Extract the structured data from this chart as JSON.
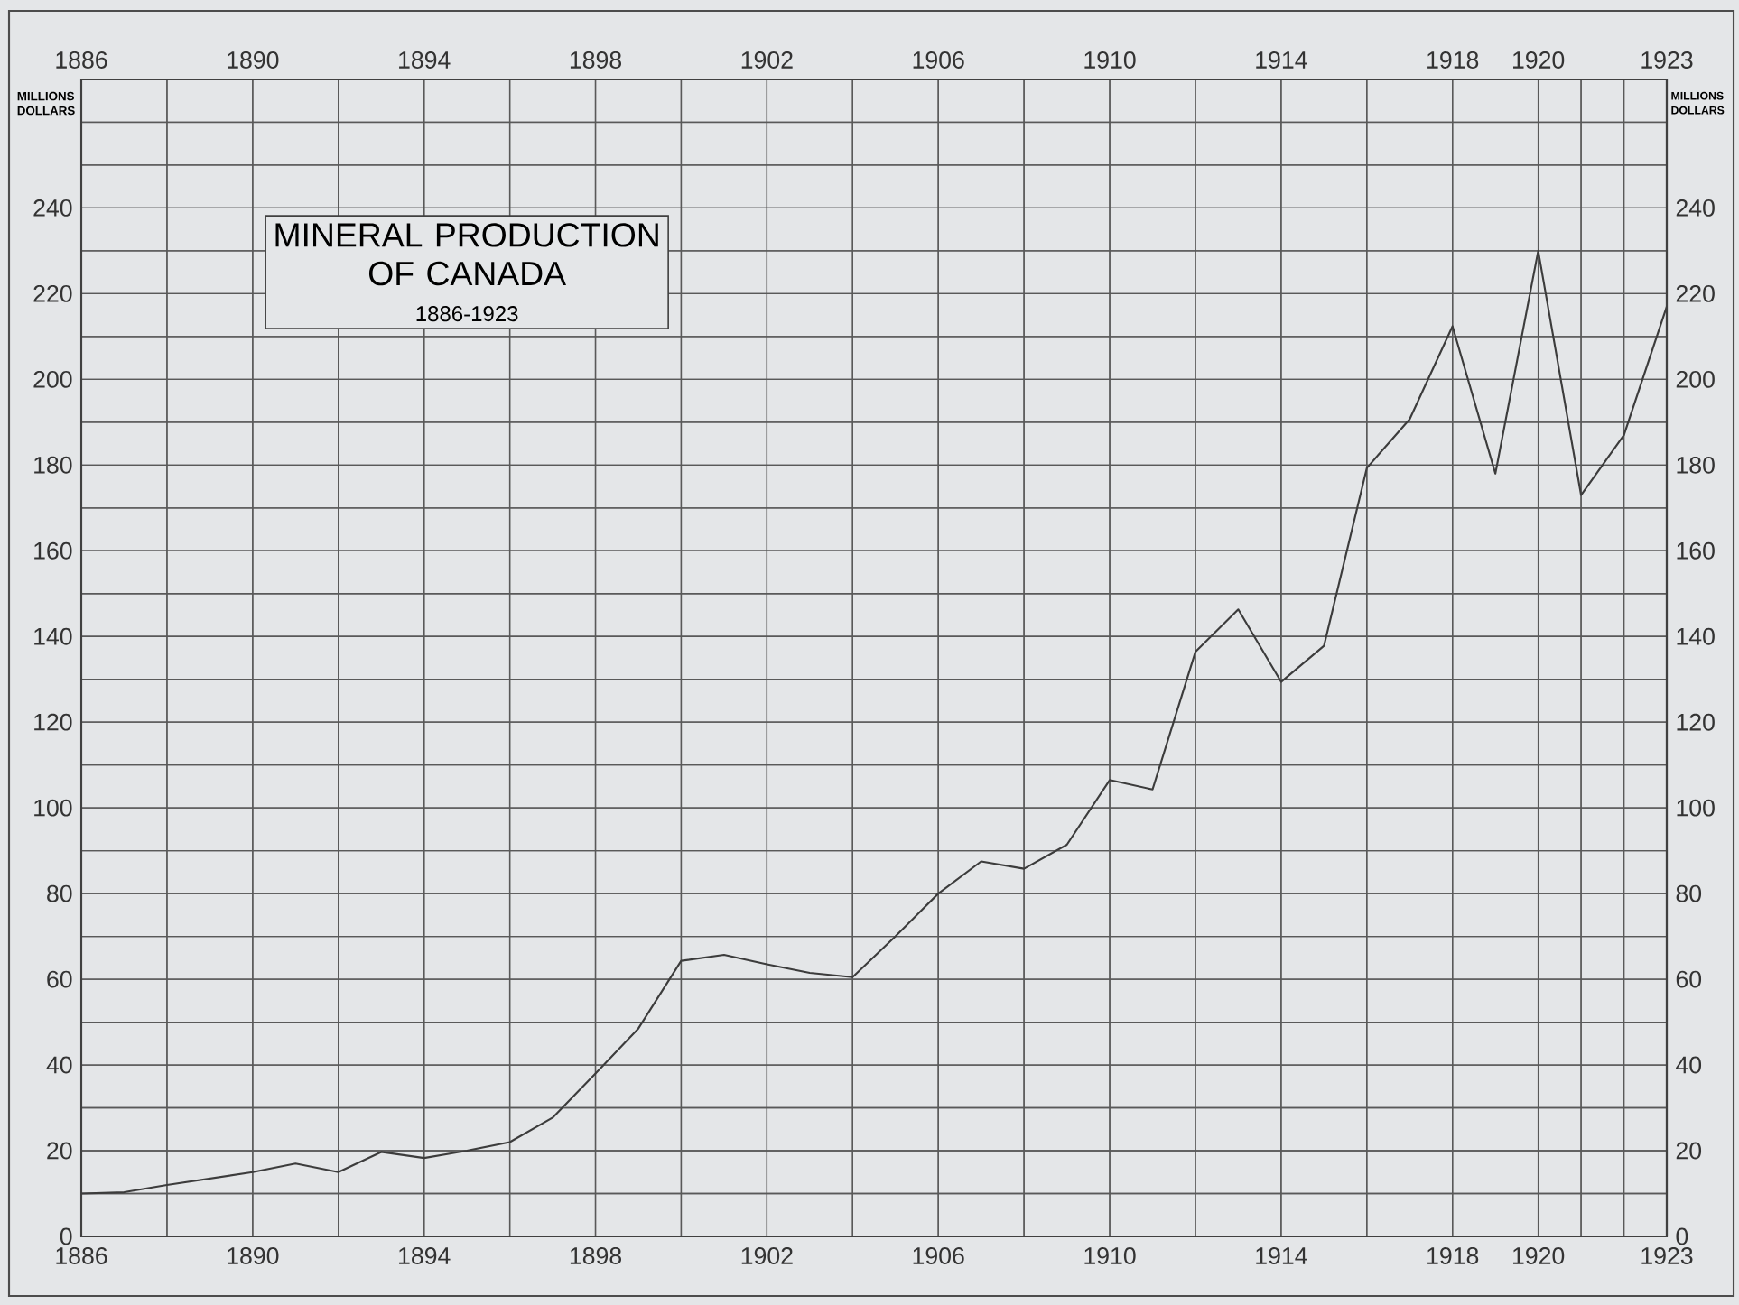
{
  "chart_data": {
    "type": "line",
    "title": "MINERAL PRODUCTION OF CANADA",
    "subtitle": "1886-1923",
    "ylabel": "MILLIONS DOLLARS",
    "y2label": "MILLIONS DOLLARS",
    "x": [
      1886,
      1887,
      1888,
      1889,
      1890,
      1891,
      1892,
      1893,
      1894,
      1895,
      1896,
      1897,
      1898,
      1899,
      1900,
      1901,
      1902,
      1903,
      1904,
      1905,
      1906,
      1907,
      1908,
      1909,
      1910,
      1911,
      1912,
      1913,
      1914,
      1915,
      1916,
      1917,
      1918,
      1919,
      1920,
      1921,
      1922,
      1923
    ],
    "values": [
      10,
      10.3,
      12,
      13.5,
      15,
      17,
      15,
      19.7,
      18.3,
      20,
      22,
      27.7,
      38,
      48.5,
      64.3,
      65.7,
      63.5,
      61.5,
      60.5,
      70,
      80,
      87.5,
      85.8,
      91.4,
      106.5,
      104.3,
      136.4,
      146.3,
      129.4,
      137.8,
      179.3,
      190.7,
      212.4,
      178,
      230,
      173,
      187,
      217
    ],
    "color": "#3c3c3c",
    "marker": "none",
    "grid": true,
    "xlim": [
      1886,
      1923
    ],
    "x2lim": [
      1886,
      1923
    ],
    "ylim": [
      0,
      270
    ],
    "y2lim": [
      0,
      270
    ],
    "xticks": [
      1886,
      {
        "value": 1888,
        "label": null
      },
      1890,
      {
        "value": 1892,
        "label": null
      },
      1894,
      {
        "value": 1896,
        "label": null
      },
      1898,
      {
        "value": 1900,
        "label": null
      },
      1902,
      {
        "value": 1904,
        "label": null
      },
      1906,
      {
        "value": 1908,
        "label": null
      },
      1910,
      {
        "value": 1912,
        "label": null
      },
      1914,
      {
        "value": 1916,
        "label": null
      },
      1918,
      1920,
      {
        "value": 1921,
        "label": null
      },
      {
        "value": 1922,
        "label": null
      },
      1923
    ],
    "x2ticks": [
      1886,
      {
        "value": 1888,
        "label": null
      },
      1890,
      {
        "value": 1892,
        "label": null
      },
      1894,
      {
        "value": 1896,
        "label": null
      },
      1898,
      {
        "value": 1900,
        "label": null
      },
      1902,
      {
        "value": 1904,
        "label": null
      },
      1906,
      {
        "value": 1908,
        "label": null
      },
      1910,
      {
        "value": 1912,
        "label": null
      },
      1914,
      {
        "value": 1916,
        "label": null
      },
      1918,
      1920,
      {
        "value": 1921,
        "label": null
      },
      {
        "value": 1922,
        "label": null
      },
      1923
    ],
    "yticks": [
      0,
      {
        "value": 10,
        "label": null
      },
      20,
      {
        "value": 30,
        "label": null
      },
      40,
      {
        "value": 50,
        "label": null
      },
      60,
      {
        "value": 70,
        "label": null
      },
      80,
      {
        "value": 90,
        "label": null
      },
      100,
      {
        "value": 110,
        "label": null
      },
      120,
      {
        "value": 130,
        "label": null
      },
      140,
      {
        "value": 150,
        "label": null
      },
      160,
      {
        "value": 170,
        "label": null
      },
      180,
      {
        "value": 190,
        "label": null
      },
      200,
      {
        "value": 210,
        "label": null
      },
      220,
      {
        "value": 230,
        "label": null
      },
      240,
      {
        "value": 250,
        "label": null
      },
      {
        "value": 260,
        "label": null
      }
    ],
    "y2ticks": [
      0,
      {
        "value": 10,
        "label": null
      },
      20,
      {
        "value": 30,
        "label": null
      },
      40,
      {
        "value": 50,
        "label": null
      },
      60,
      {
        "value": 70,
        "label": null
      },
      80,
      {
        "value": 90,
        "label": null
      },
      100,
      {
        "value": 110,
        "label": null
      },
      120,
      {
        "value": 130,
        "label": null
      },
      140,
      {
        "value": 150,
        "label": null
      },
      160,
      {
        "value": 170,
        "label": null
      },
      180,
      {
        "value": 190,
        "label": null
      },
      200,
      {
        "value": 210,
        "label": null
      },
      220,
      {
        "value": 230,
        "label": null
      },
      240,
      {
        "value": 250,
        "label": null
      },
      {
        "value": 260,
        "label": null
      }
    ]
  }
}
